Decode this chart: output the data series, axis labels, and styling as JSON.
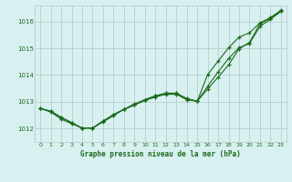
{
  "title": "Graphe pression niveau de la mer (hPa)",
  "background_color": "#d8f0f0",
  "grid_color": "#b0c8c8",
  "line_color": "#1a6b1a",
  "xlim": [
    -0.5,
    23.5
  ],
  "ylim": [
    1011.5,
    1016.6
  ],
  "yticks": [
    1012,
    1013,
    1014,
    1015,
    1016
  ],
  "xticks": [
    0,
    1,
    2,
    3,
    4,
    5,
    6,
    7,
    8,
    9,
    10,
    11,
    12,
    13,
    14,
    15,
    16,
    17,
    18,
    19,
    20,
    21,
    22,
    23
  ],
  "line1": [
    1012.75,
    1012.65,
    1012.42,
    1012.22,
    1012.02,
    1012.02,
    1012.28,
    1012.52,
    1012.72,
    1012.92,
    1013.08,
    1013.22,
    1013.32,
    1013.32,
    1013.12,
    1013.02,
    1013.48,
    1013.92,
    1014.38,
    1014.98,
    1015.22,
    1015.92,
    1016.12,
    1016.38
  ],
  "line2": [
    1012.75,
    1012.65,
    1012.42,
    1012.22,
    1012.02,
    1012.02,
    1012.28,
    1012.52,
    1012.72,
    1012.88,
    1013.08,
    1013.22,
    1013.32,
    1013.32,
    1013.12,
    1013.02,
    1013.58,
    1014.12,
    1014.62,
    1015.02,
    1015.18,
    1015.82,
    1016.08,
    1016.38
  ],
  "line3": [
    1012.75,
    1012.62,
    1012.35,
    1012.18,
    1012.02,
    1012.02,
    1012.25,
    1012.48,
    1012.72,
    1012.88,
    1013.05,
    1013.18,
    1013.28,
    1013.28,
    1013.08,
    1013.02,
    1014.02,
    1014.52,
    1015.02,
    1015.42,
    1015.58,
    1015.95,
    1016.15,
    1016.42
  ],
  "figsize": [
    3.2,
    2.0
  ],
  "dpi": 100
}
